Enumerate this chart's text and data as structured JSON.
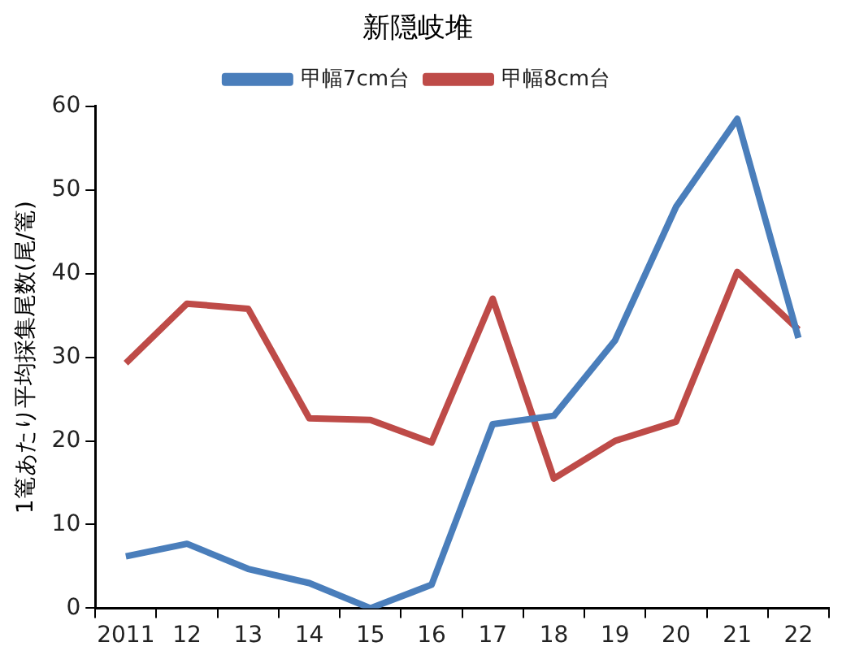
{
  "chart_data": {
    "type": "line",
    "title": "新隠岐堆",
    "ylabel": "1篭あたり平均採集尾数(尾/篭)",
    "categories": [
      "2011",
      "12",
      "13",
      "14",
      "15",
      "16",
      "17",
      "18",
      "19",
      "20",
      "21",
      "22"
    ],
    "series": [
      {
        "name": "甲幅7cm台",
        "color": "#4a7ebb",
        "values": [
          6.2,
          7.7,
          4.7,
          3.0,
          0,
          2.8,
          22,
          23,
          32,
          48,
          58.5,
          32.3
        ]
      },
      {
        "name": "甲幅8cm台",
        "color": "#be4b48",
        "values": [
          29.3,
          36.4,
          35.8,
          22.7,
          22.5,
          19.8,
          37,
          15.5,
          20,
          22.3,
          40.2,
          33.3
        ]
      }
    ],
    "ylim": [
      0,
      60
    ],
    "yticks": [
      0,
      10,
      20,
      30,
      40,
      50,
      60
    ],
    "grid": false,
    "legend": "top",
    "marker": "none",
    "line_style": "solid"
  }
}
